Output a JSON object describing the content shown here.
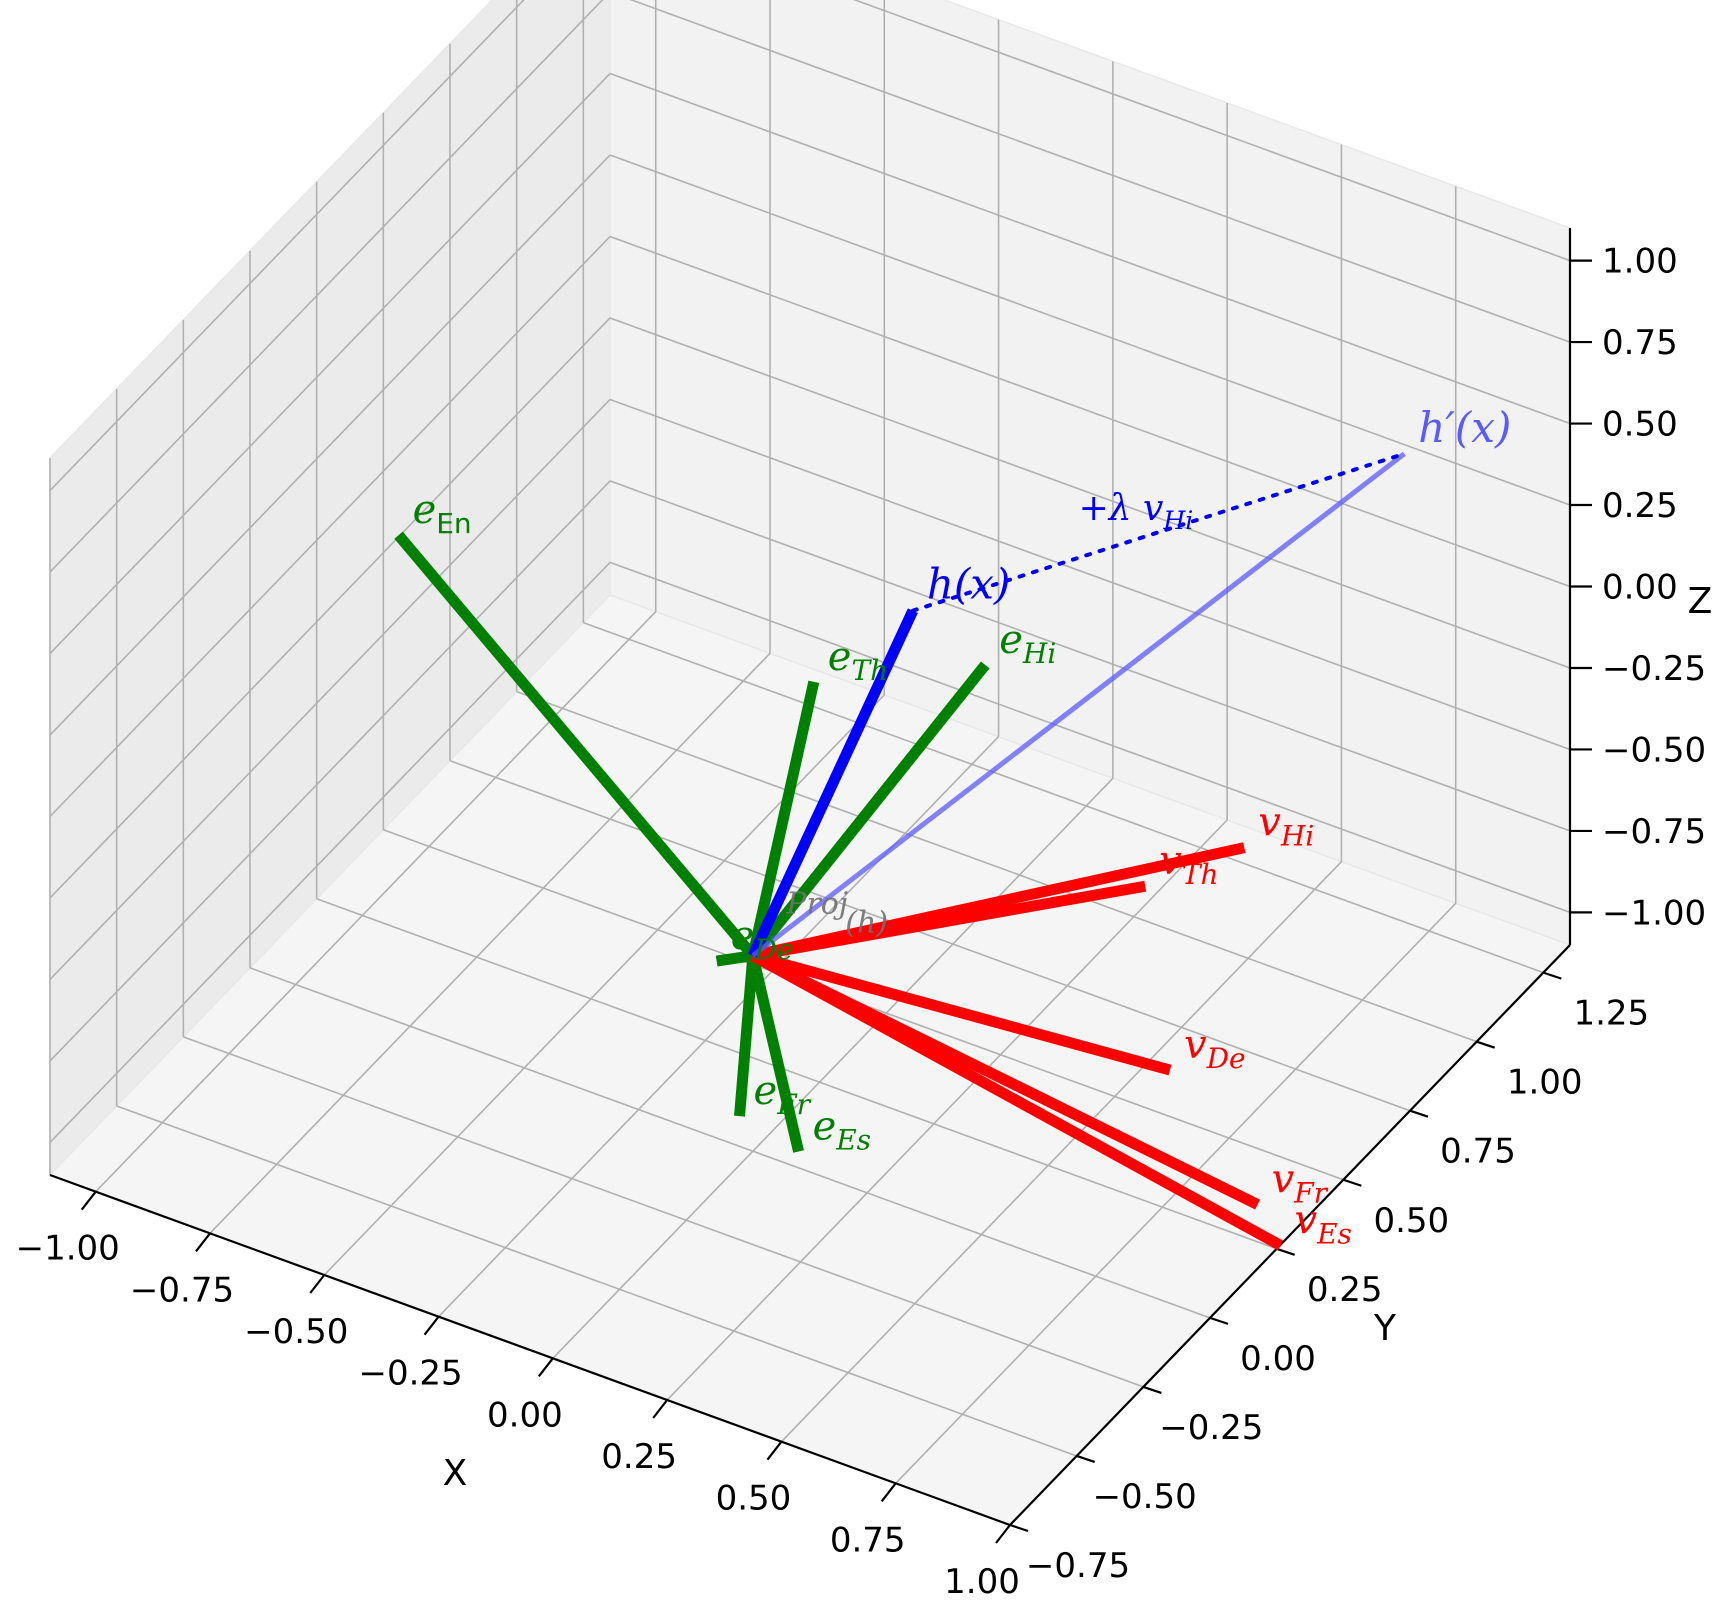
{
  "chart_data": {
    "type": "3d-vector",
    "title": "",
    "xlabel": "X",
    "ylabel": "Y",
    "zlabel": "Z",
    "xlim": [
      -1.1,
      1.0
    ],
    "ylim": [
      -0.75,
      1.35
    ],
    "zlim": [
      -1.1,
      1.1
    ],
    "grid": true,
    "x_ticks": [
      "−1.00",
      "−0.75",
      "−0.50",
      "−0.25",
      "0.00",
      "0.25",
      "0.50",
      "0.75",
      "1.00"
    ],
    "x_tick_values": [
      -1.0,
      -0.75,
      -0.5,
      -0.25,
      0.0,
      0.25,
      0.5,
      0.75,
      1.0
    ],
    "y_ticks": [
      "−0.75",
      "−0.50",
      "−0.25",
      "0.00",
      "0.25",
      "0.50",
      "0.75",
      "1.00",
      "1.25"
    ],
    "y_tick_values": [
      -0.75,
      -0.5,
      -0.25,
      0.0,
      0.25,
      0.5,
      0.75,
      1.0,
      1.25
    ],
    "z_ticks": [
      "−1.00",
      "−0.75",
      "−0.50",
      "−0.25",
      "0.00",
      "0.25",
      "0.50",
      "0.75",
      "1.00"
    ],
    "z_tick_values": [
      -1.0,
      -0.75,
      -0.5,
      -0.25,
      0.0,
      0.25,
      0.5,
      0.75,
      1.0
    ],
    "colors": {
      "language_embedding": "#008000",
      "steering_vector": "#ff0000",
      "hidden_state": "#0000ff",
      "steered_state": "#5a5aff",
      "projection": "#707070"
    },
    "origin": [
      0.0,
      0.0,
      -0.5
    ],
    "vectors": [
      {
        "label": "e",
        "sub": "En",
        "sub_roman": true,
        "group": "language_embedding",
        "end": [
          -0.95,
          0.3,
          0.05
        ]
      },
      {
        "label": "e",
        "sub": "Th",
        "sub_roman": false,
        "group": "language_embedding",
        "end": [
          -0.1,
          0.4,
          -0.05
        ]
      },
      {
        "label": "e",
        "sub": "Hi",
        "sub_roman": false,
        "group": "language_embedding",
        "end": [
          0.1,
          0.7,
          -0.15
        ]
      },
      {
        "label": "e",
        "sub": "Fr",
        "sub_roman": false,
        "group": "language_embedding",
        "end": [
          0.0,
          -0.05,
          -0.95
        ]
      },
      {
        "label": "e",
        "sub": "Es",
        "sub_roman": false,
        "group": "language_embedding",
        "end": [
          0.1,
          0.0,
          -1.05
        ]
      },
      {
        "label": "e",
        "sub": "De",
        "sub_roman": false,
        "group": "language_embedding",
        "end": [
          -0.05,
          -0.05,
          -0.5
        ]
      },
      {
        "label": "v",
        "sub": "Hi",
        "sub_roman": false,
        "group": "steering_vector",
        "end": [
          0.55,
          0.9,
          -0.65
        ]
      },
      {
        "label": "v",
        "sub": "Th",
        "sub_roman": false,
        "group": "steering_vector",
        "end": [
          0.45,
          0.7,
          -0.65
        ]
      },
      {
        "label": "v",
        "sub": "De",
        "sub_roman": false,
        "group": "steering_vector",
        "end": [
          0.65,
          0.45,
          -0.9
        ]
      },
      {
        "label": "v",
        "sub": "Fr",
        "sub_roman": false,
        "group": "steering_vector",
        "end": [
          0.9,
          0.35,
          -1.1
        ]
      },
      {
        "label": "v",
        "sub": "Es",
        "sub_roman": false,
        "group": "steering_vector",
        "end": [
          0.95,
          0.35,
          -1.2
        ]
      },
      {
        "label": "h(x)",
        "sub": "",
        "sub_roman": false,
        "group": "hidden_state",
        "end": [
          0.0,
          0.6,
          0.05
        ]
      },
      {
        "label": "h′(x)",
        "sub": "",
        "sub_roman": false,
        "group": "steered_state",
        "end": [
          0.55,
          1.5,
          0.05
        ]
      }
    ],
    "annotations": [
      {
        "text": "+λ v",
        "sub": "Hi",
        "group": "hidden_state",
        "from": [
          0.0,
          0.6,
          0.05
        ],
        "to": [
          0.55,
          1.5,
          0.05
        ]
      },
      {
        "text": "Proj",
        "sub": "",
        "group": "projection",
        "at": [
          0.0,
          0.05,
          -0.45
        ]
      },
      {
        "text": "(h)",
        "sub": "",
        "group": "projection",
        "at": [
          0.1,
          0.1,
          -0.5
        ]
      }
    ]
  }
}
